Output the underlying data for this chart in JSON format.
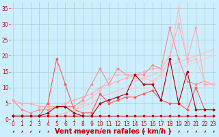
{
  "bg_color": "#cceeff",
  "grid_color": "#aacccc",
  "xlabel": "Vent moyen/en rafales ( km/h )",
  "xlabel_color": "#cc0000",
  "xlabel_fontsize": 7,
  "ylabel_ticks": [
    0,
    5,
    10,
    15,
    20,
    25,
    30,
    35
  ],
  "xticks": [
    0,
    1,
    2,
    3,
    4,
    5,
    6,
    7,
    8,
    9,
    10,
    11,
    12,
    13,
    14,
    15,
    16,
    17,
    18,
    19,
    20,
    21,
    22,
    23
  ],
  "xlim": [
    -0.3,
    23.3
  ],
  "ylim": [
    0,
    37
  ],
  "tick_color": "#cc0000",
  "tick_fontsize": 5.5,
  "lines": [
    {
      "x": [
        0,
        1,
        2,
        3,
        4,
        5,
        6,
        7,
        8,
        9,
        10,
        11,
        12,
        13,
        14,
        15,
        16,
        17,
        18,
        19,
        20,
        21,
        22,
        23
      ],
      "y": [
        1,
        1,
        1,
        1,
        1,
        1,
        1,
        1,
        1,
        1,
        1,
        1,
        1,
        1,
        1,
        1,
        1,
        1,
        1,
        1,
        1,
        1,
        1,
        1
      ],
      "color": "#cc0000",
      "lw": 0.8,
      "marker": "D",
      "ms": 1.5,
      "zorder": 4
    },
    {
      "x": [
        0,
        1,
        2,
        3,
        4,
        5,
        6,
        7,
        8,
        9,
        10,
        11,
        12,
        13,
        14,
        15,
        16,
        17,
        18,
        19,
        20,
        21,
        22,
        23
      ],
      "y": [
        1,
        1,
        1,
        1,
        2,
        4,
        4,
        2,
        1,
        1,
        5,
        6,
        7,
        8,
        14,
        11,
        11,
        6,
        19,
        5,
        15,
        3,
        3,
        3
      ],
      "color": "#aa0000",
      "lw": 0.8,
      "marker": "D",
      "ms": 1.5,
      "zorder": 4
    },
    {
      "x": [
        0,
        1,
        2,
        3,
        4,
        5,
        6,
        7,
        8,
        9,
        10,
        11,
        12,
        13,
        14,
        15,
        16,
        17,
        18,
        19,
        20,
        21,
        22,
        23
      ],
      "y": [
        1,
        1,
        1,
        1,
        1,
        1,
        2,
        3,
        4,
        5,
        7,
        8,
        9,
        10,
        12,
        13,
        14,
        15,
        17,
        18,
        19,
        20,
        21,
        22
      ],
      "color": "#ffbbbb",
      "lw": 0.8,
      "marker": null,
      "ms": 0,
      "zorder": 2
    },
    {
      "x": [
        0,
        1,
        2,
        3,
        4,
        5,
        6,
        7,
        8,
        9,
        10,
        11,
        12,
        13,
        14,
        15,
        16,
        17,
        18,
        19,
        20,
        21,
        22,
        23
      ],
      "y": [
        1,
        1,
        1,
        1,
        1,
        1,
        1,
        2,
        3,
        4,
        5,
        6,
        8,
        9,
        10,
        11,
        12,
        13,
        15,
        16,
        17,
        18,
        19,
        20
      ],
      "color": "#ffcccc",
      "lw": 0.8,
      "marker": null,
      "ms": 0,
      "zorder": 2
    },
    {
      "x": [
        0,
        1,
        2,
        3,
        4,
        5,
        6,
        7,
        8,
        9,
        10,
        11,
        12,
        13,
        14,
        15,
        16,
        17,
        18,
        19,
        20,
        21,
        22,
        23
      ],
      "y": [
        1,
        1,
        1,
        1,
        1,
        1,
        1,
        1,
        2,
        3,
        4,
        5,
        6,
        7,
        8,
        9,
        10,
        11,
        12,
        13,
        14,
        15,
        16,
        17
      ],
      "color": "#ffddd0",
      "lw": 0.8,
      "marker": null,
      "ms": 0,
      "zorder": 2
    },
    {
      "x": [
        0,
        1,
        2,
        3,
        4,
        5,
        6,
        7,
        8,
        9,
        10,
        11,
        12,
        13,
        14,
        15,
        16,
        17,
        18,
        19,
        20,
        21,
        22,
        23
      ],
      "y": [
        6,
        3,
        2,
        3,
        3,
        4,
        4,
        4,
        6,
        11,
        16,
        11,
        16,
        14,
        14,
        14,
        17,
        16,
        29,
        19,
        12,
        11,
        12,
        11
      ],
      "color": "#ff8888",
      "lw": 0.8,
      "marker": "D",
      "ms": 1.5,
      "zorder": 3
    },
    {
      "x": [
        0,
        1,
        2,
        3,
        4,
        5,
        6,
        7,
        8,
        9,
        10,
        11,
        12,
        13,
        14,
        15,
        16,
        17,
        18,
        19,
        20,
        21,
        22,
        23
      ],
      "y": [
        1,
        1,
        1,
        1,
        5,
        19,
        11,
        3,
        2,
        2,
        8,
        5,
        6,
        7,
        7,
        8,
        9,
        6,
        5,
        5,
        3,
        10,
        3,
        3
      ],
      "color": "#ff5555",
      "lw": 0.8,
      "marker": "D",
      "ms": 1.5,
      "zorder": 3
    },
    {
      "x": [
        0,
        1,
        2,
        3,
        4,
        5,
        6,
        7,
        8,
        9,
        10,
        11,
        12,
        13,
        14,
        15,
        16,
        17,
        18,
        19,
        20,
        21,
        22,
        23
      ],
      "y": [
        6,
        5,
        5,
        4,
        4,
        4,
        5,
        6,
        7,
        8,
        10,
        11,
        12,
        13,
        14,
        15,
        16,
        16,
        20,
        30,
        19,
        29,
        11,
        11
      ],
      "color": "#ffaaaa",
      "lw": 0.8,
      "marker": "D",
      "ms": 1.5,
      "zorder": 3
    },
    {
      "x": [
        0,
        1,
        2,
        3,
        4,
        5,
        6,
        7,
        8,
        9,
        10,
        11,
        12,
        13,
        14,
        15,
        16,
        17,
        18,
        19,
        20,
        21,
        22,
        23
      ],
      "y": [
        1,
        1,
        1,
        1,
        1,
        1,
        2,
        3,
        5,
        7,
        9,
        13,
        14,
        14,
        13,
        13,
        12,
        14,
        19,
        35,
        18,
        19,
        12,
        11
      ],
      "color": "#ffbbbb",
      "lw": 0.8,
      "marker": "D",
      "ms": 1.5,
      "zorder": 3
    }
  ],
  "arrow_color": "#cc0000"
}
